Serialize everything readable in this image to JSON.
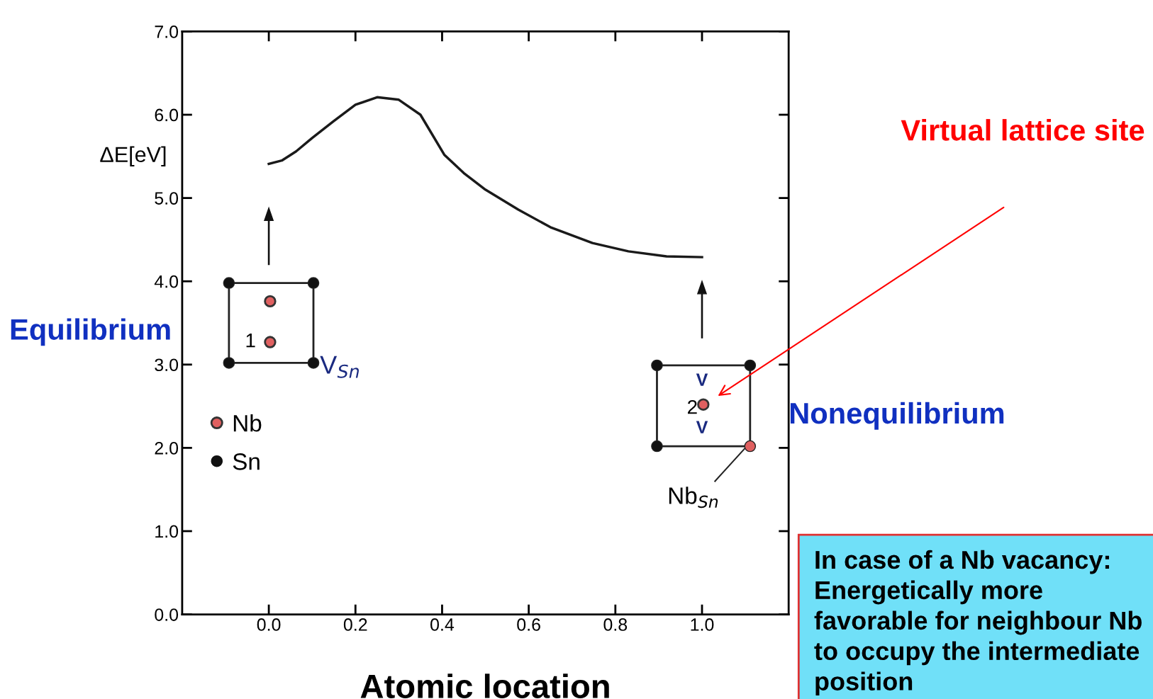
{
  "chart_data": {
    "type": "line",
    "xlabel": "Atomic location",
    "ylabel": "ΔE[eV]",
    "x": [
      0.0,
      0.03,
      0.063,
      0.1,
      0.149,
      0.2,
      0.25,
      0.3,
      0.35,
      0.405,
      0.45,
      0.5,
      0.576,
      0.65,
      0.747,
      0.83,
      0.918,
      1.0
    ],
    "series": [
      {
        "color": "#1a1a1a",
        "values": [
          5.41,
          5.45,
          5.56,
          5.72,
          5.92,
          6.12,
          6.21,
          6.18,
          6.0,
          5.52,
          5.3,
          5.1,
          4.86,
          4.65,
          4.46,
          4.36,
          4.3,
          4.29
        ]
      }
    ],
    "xlim": [
      -0.2,
      1.2
    ],
    "ylim": [
      0,
      7
    ],
    "xticks": [
      {
        "value": 0,
        "label": "0.0"
      },
      {
        "value": 0.2,
        "label": "0.2"
      },
      {
        "value": 0.4,
        "label": "0.4"
      },
      {
        "value": 0.6,
        "label": "0.6"
      },
      {
        "value": 0.8,
        "label": "0.8"
      },
      {
        "value": 1,
        "label": "1.0"
      }
    ],
    "yticks": [
      {
        "value": 0,
        "label": "0.0"
      },
      {
        "value": 1,
        "label": "1.0"
      },
      {
        "value": 2,
        "label": "2.0"
      },
      {
        "value": 3,
        "label": "3.0"
      },
      {
        "value": 4,
        "label": "4.0"
      },
      {
        "value": 5,
        "label": "5.0"
      },
      {
        "value": 6,
        "label": "6.0"
      },
      {
        "value": 7,
        "label": "7.0"
      }
    ],
    "grid": false,
    "marker": "none",
    "line_style": "solid",
    "annotations": [
      "Virtual lattice site",
      "Equilibrium",
      "Nonequilibrium",
      "In case of a Nb vacancy: Energetically more favorable for neighbour Nb to occupy the intermediate position",
      "Nb",
      "Sn",
      "1",
      "2",
      "V$_{Sn}$",
      "Nb$_{Sn}$",
      "V",
      "V"
    ]
  }
}
